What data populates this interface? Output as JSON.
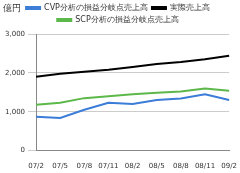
{
  "chart_data": {
    "type": "line",
    "y_label": "億円",
    "categories": [
      "07/2",
      "07/5",
      "07/8",
      "07/11",
      "08/2",
      "08/5",
      "08/8",
      "08/11",
      "09/2"
    ],
    "series": [
      {
        "name": "CVP分析の損益分岐点売上高",
        "color": "#3b7dd8",
        "values": [
          870,
          840,
          1050,
          1230,
          1200,
          1300,
          1340,
          1450,
          1300
        ]
      },
      {
        "name": "実際売上高",
        "color": "#000000",
        "values": [
          1900,
          1980,
          2030,
          2080,
          2150,
          2230,
          2280,
          2350,
          2440
        ]
      },
      {
        "name": "SCP分析の損益分岐点売上高",
        "color": "#5cb84a",
        "values": [
          1180,
          1230,
          1350,
          1400,
          1450,
          1490,
          1520,
          1600,
          1540
        ]
      }
    ],
    "ylim": [
      0,
      3000
    ],
    "yticks": [
      0,
      {
        "value": 1000,
        "label": "1,000"
      },
      {
        "value": 2000,
        "label": "2,000"
      },
      {
        "value": 3000,
        "label": "3,000"
      }
    ],
    "grid": true,
    "legend": "top"
  }
}
